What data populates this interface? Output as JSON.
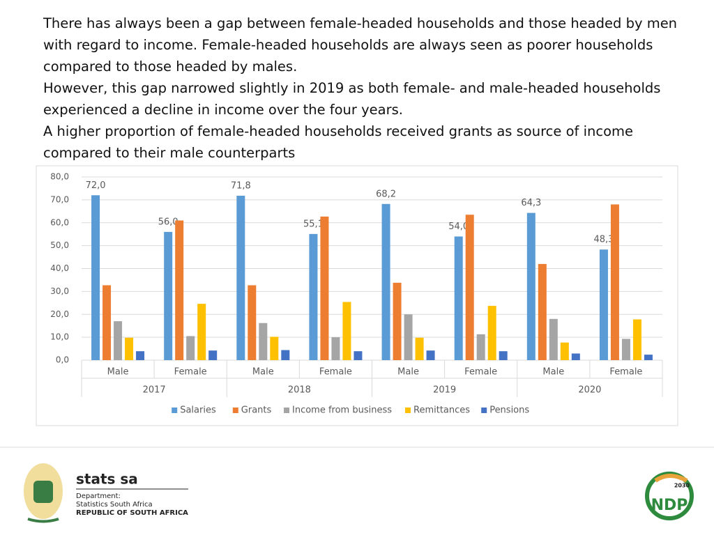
{
  "paragraphs": [
    "There has always been a gap between female-headed households and those headed by men with regard to income. Female-headed households are always seen as poorer households compared to those headed by males.",
    "However, this gap narrowed slightly in 2019 as both female- and male-headed households experienced a decline in income over the four years.",
    "A higher proportion of female-headed households received grants as source of income compared to their male counterparts"
  ],
  "chart_data": {
    "type": "bar",
    "categories": [
      "Male",
      "Female",
      "Male",
      "Female",
      "Male",
      "Female",
      "Male",
      "Female"
    ],
    "groups": [
      "2017",
      "2018",
      "2019",
      "2020"
    ],
    "series": [
      {
        "name": "Salaries",
        "color": "#5b9bd5",
        "values": [
          72.0,
          56.0,
          71.8,
          55.1,
          68.2,
          54.0,
          64.3,
          48.3
        ],
        "value_labels": [
          "72,0",
          "56,0",
          "71,8",
          "55,1",
          "68,2",
          "54,0",
          "64,3",
          "48,3"
        ]
      },
      {
        "name": "Grants",
        "color": "#ed7d31",
        "values": [
          32.7,
          61.0,
          32.7,
          62.7,
          33.8,
          63.5,
          42.0,
          68.0
        ]
      },
      {
        "name": "Income from business",
        "color": "#a5a5a5",
        "values": [
          17.0,
          10.5,
          16.2,
          10.0,
          20.0,
          11.3,
          18.0,
          9.3
        ]
      },
      {
        "name": "Remittances",
        "color": "#ffc000",
        "values": [
          9.8,
          24.6,
          10.2,
          25.4,
          9.8,
          23.7,
          7.7,
          17.8
        ]
      },
      {
        "name": "Pensions",
        "color": "#4472c4",
        "values": [
          3.9,
          4.2,
          4.4,
          3.9,
          4.2,
          3.9,
          2.9,
          2.4
        ]
      }
    ],
    "ylim": [
      0,
      80
    ],
    "yticks": [
      {
        "value": 0,
        "label": "0,0"
      },
      {
        "value": 10,
        "label": "10,0"
      },
      {
        "value": 20,
        "label": "20,0"
      },
      {
        "value": 30,
        "label": "30,0"
      },
      {
        "value": 40,
        "label": "40,0"
      },
      {
        "value": 50,
        "label": "50,0"
      },
      {
        "value": 60,
        "label": "60,0"
      },
      {
        "value": 70,
        "label": "70,0"
      },
      {
        "value": 80,
        "label": "80,0"
      }
    ],
    "grid": true,
    "legend": "bottom"
  },
  "footer": {
    "brand": "stats sa",
    "department": "Department:",
    "org": "Statistics South Africa",
    "country": "REPUBLIC OF SOUTH AFRICA",
    "ndp": "NDP",
    "ndp_year": "2030"
  }
}
